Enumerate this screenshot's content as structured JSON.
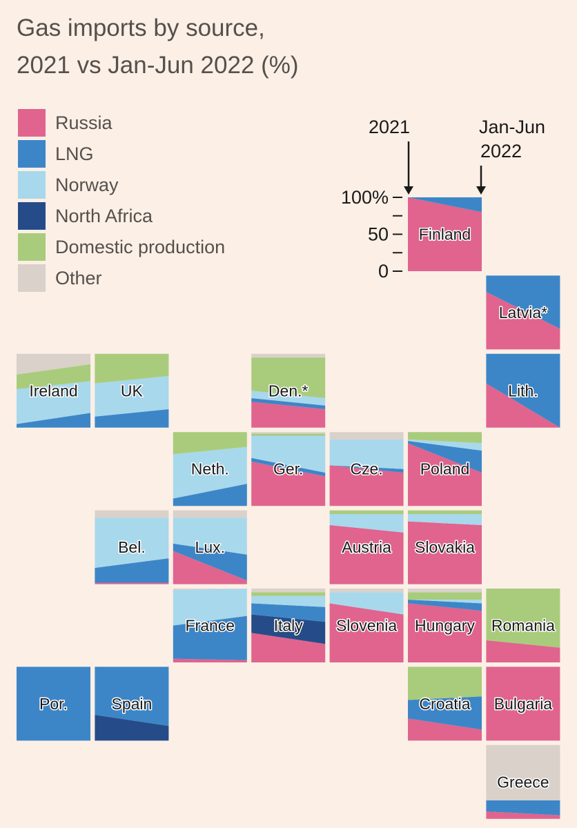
{
  "title_line1": "Gas imports by source,",
  "title_line2": "2021 vs Jan-Jun 2022 (%)",
  "colors": {
    "background": "#fbefe6",
    "Russia": "#e0648e",
    "LNG": "#3c86c8",
    "Norway": "#a8d8ec",
    "North Africa": "#254c88",
    "Domestic production": "#a9cc7c",
    "Other": "#d9d1ca"
  },
  "chart_data": {
    "type": "area",
    "title": "Gas imports by source, 2021 vs Jan-Jun 2022 (%)",
    "layout": "tile-map",
    "x": [
      "2021",
      "Jan-Jun 2022"
    ],
    "series_order": [
      "Russia",
      "North Africa",
      "LNG",
      "Norway",
      "Domestic production",
      "Other"
    ],
    "legend": [
      "Russia",
      "LNG",
      "Norway",
      "North Africa",
      "Domestic production",
      "Other"
    ],
    "key": {
      "left_label": "2021",
      "right_label_line1": "Jan-Jun",
      "right_label_line2": "2022",
      "ticks": [
        "100%",
        "50",
        "0"
      ],
      "tick_values": [
        100,
        50,
        0
      ]
    },
    "countries": [
      {
        "label": "Finland",
        "col": 5,
        "row": 0,
        "v2021": {
          "Russia": 100
        },
        "v2022": {
          "Russia": 80,
          "LNG": 20
        }
      },
      {
        "label": "Latvia*",
        "col": 6,
        "row": 1,
        "v2021": {
          "Russia": 78,
          "LNG": 22
        },
        "v2022": {
          "Russia": 28,
          "LNG": 72
        }
      },
      {
        "label": "Ireland",
        "col": 0,
        "row": 2,
        "v2021": {
          "LNG": 5,
          "Norway": 47,
          "Domestic production": 20,
          "Other": 28
        },
        "v2022": {
          "LNG": 20,
          "Norway": 43,
          "Domestic production": 23,
          "Other": 14
        }
      },
      {
        "label": "UK",
        "col": 1,
        "row": 2,
        "v2021": {
          "LNG": 15,
          "Norway": 45,
          "Domestic production": 40
        },
        "v2022": {
          "LNG": 25,
          "Norway": 45,
          "Domestic production": 30
        }
      },
      {
        "label": "Den.*",
        "col": 3,
        "row": 2,
        "v2021": {
          "Russia": 35,
          "LNG": 5,
          "Norway": 10,
          "Domestic production": 45,
          "Other": 5
        },
        "v2022": {
          "Russia": 25,
          "LNG": 5,
          "Norway": 10,
          "Domestic production": 55,
          "Other": 5
        }
      },
      {
        "label": "Lith.",
        "col": 6,
        "row": 2,
        "v2021": {
          "Russia": 60,
          "LNG": 40
        },
        "v2022": {
          "Russia": 0,
          "LNG": 100
        }
      },
      {
        "label": "Neth.",
        "col": 2,
        "row": 3,
        "v2021": {
          "LNG": 10,
          "Norway": 60,
          "Domestic production": 30
        },
        "v2022": {
          "LNG": 30,
          "Norway": 50,
          "Domestic production": 20
        }
      },
      {
        "label": "Ger.",
        "col": 3,
        "row": 3,
        "v2021": {
          "Russia": 60,
          "LNG": 5,
          "Norway": 30,
          "Domestic production": 3,
          "Other": 2
        },
        "v2022": {
          "Russia": 40,
          "LNG": 5,
          "Norway": 50,
          "Domestic production": 3,
          "Other": 2
        }
      },
      {
        "label": "Cze.",
        "col": 4,
        "row": 3,
        "v2021": {
          "Russia": 55,
          "Norway": 35,
          "Other": 10
        },
        "v2022": {
          "Russia": 45,
          "LNG": 5,
          "Norway": 40,
          "Other": 10
        }
      },
      {
        "label": "Poland",
        "col": 5,
        "row": 3,
        "v2021": {
          "Russia": 85,
          "LNG": 3,
          "Norway": 2,
          "Domestic production": 10
        },
        "v2022": {
          "Russia": 45,
          "LNG": 30,
          "Norway": 10,
          "Domestic production": 15
        }
      },
      {
        "label": "Bel.",
        "col": 1,
        "row": 4,
        "v2021": {
          "Russia": 2,
          "LNG": 20,
          "Norway": 68,
          "Other": 10
        },
        "v2022": {
          "Russia": 2,
          "LNG": 33,
          "Norway": 55,
          "Other": 10
        }
      },
      {
        "label": "Lux.",
        "col": 2,
        "row": 4,
        "v2021": {
          "Russia": 45,
          "LNG": 10,
          "Norway": 35,
          "Other": 10
        },
        "v2022": {
          "Russia": 5,
          "LNG": 35,
          "Norway": 50,
          "Other": 10
        }
      },
      {
        "label": "Austria",
        "col": 4,
        "row": 4,
        "v2021": {
          "Russia": 80,
          "Norway": 15,
          "Domestic production": 5
        },
        "v2022": {
          "Russia": 70,
          "Norway": 25,
          "Domestic production": 5
        }
      },
      {
        "label": "Slovakia",
        "col": 5,
        "row": 4,
        "v2021": {
          "Russia": 85,
          "Norway": 10,
          "Domestic production": 5
        },
        "v2022": {
          "Russia": 80,
          "Norway": 15,
          "Domestic production": 5
        }
      },
      {
        "label": "France",
        "col": 2,
        "row": 5,
        "v2021": {
          "Russia": 5,
          "LNG": 45,
          "Norway": 48,
          "Other": 2
        },
        "v2022": {
          "Russia": 3,
          "LNG": 60,
          "Norway": 37
        }
      },
      {
        "label": "Italy",
        "col": 3,
        "row": 5,
        "v2021": {
          "Russia": 40,
          "LNG": 15,
          "Norway": 10,
          "North Africa": 25,
          "Domestic production": 5,
          "Other": 5
        },
        "v2022": {
          "Russia": 25,
          "LNG": 20,
          "Norway": 15,
          "North Africa": 30,
          "Domestic production": 5,
          "Other": 5
        }
      },
      {
        "label": "Slovenia",
        "col": 4,
        "row": 5,
        "v2021": {
          "Russia": 80,
          "Norway": 15,
          "Other": 5
        },
        "v2022": {
          "Russia": 65,
          "Norway": 30,
          "Other": 5
        }
      },
      {
        "label": "Hungary",
        "col": 5,
        "row": 5,
        "v2021": {
          "Russia": 80,
          "LNG": 5,
          "Domestic production": 10,
          "Other": 5
        },
        "v2022": {
          "Russia": 70,
          "LNG": 10,
          "Norway": 5,
          "Domestic production": 10,
          "Other": 5
        }
      },
      {
        "label": "Romania",
        "col": 6,
        "row": 5,
        "v2021": {
          "Russia": 30,
          "Domestic production": 70
        },
        "v2022": {
          "Russia": 20,
          "Domestic production": 80
        }
      },
      {
        "label": "Por.",
        "col": 0,
        "row": 6,
        "v2021": {
          "LNG": 100
        },
        "v2022": {
          "LNG": 100
        }
      },
      {
        "label": "Spain",
        "col": 1,
        "row": 6,
        "v2021": {
          "LNG": 65,
          "North Africa": 35
        },
        "v2022": {
          "LNG": 80,
          "North Africa": 20
        }
      },
      {
        "label": "Croatia",
        "col": 5,
        "row": 6,
        "v2021": {
          "Russia": 30,
          "LNG": 25,
          "Domestic production": 45
        },
        "v2022": {
          "Russia": 15,
          "LNG": 45,
          "Domestic production": 40
        }
      },
      {
        "label": "Bulgaria",
        "col": 6,
        "row": 6,
        "v2021": {
          "Russia": 100
        },
        "v2022": {
          "Russia": 100
        }
      },
      {
        "label": "Greece",
        "col": 6,
        "row": 7,
        "v2021": {
          "Russia": 10,
          "LNG": 15,
          "Other": 75
        },
        "v2022": {
          "Russia": 5,
          "LNG": 20,
          "Other": 75
        }
      }
    ]
  }
}
